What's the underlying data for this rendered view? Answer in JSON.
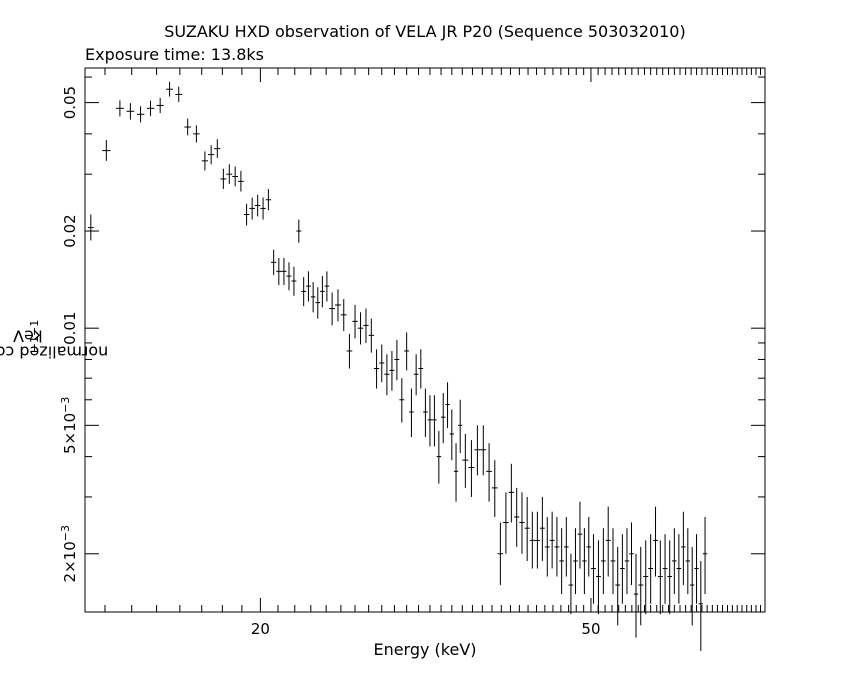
{
  "chart_data": {
    "type": "scatter",
    "title": "SUZAKU HXD observation of VELA JR P20 (Sequence 503032010)",
    "subtitle": "Exposure time: 13.8ks",
    "xlabel": "Energy (keV)",
    "ylabel_text": "normalized counts s",
    "ylabel_sup1": "−1",
    "ylabel_mid": " keV",
    "ylabel_sup2": "−1",
    "xscale": "log",
    "yscale": "log",
    "xlim": [
      12.3,
      81.0
    ],
    "ylim": [
      0.00132,
      0.064
    ],
    "xticks": [
      {
        "value": 20,
        "label": "20"
      },
      {
        "value": 50,
        "label": "50"
      }
    ],
    "yticks": [
      {
        "value": 0.05,
        "label": "0.05"
      },
      {
        "value": 0.02,
        "label": "0.02"
      },
      {
        "value": 0.01,
        "label": "0.01"
      },
      {
        "value": 0.005,
        "label": "5×10",
        "exp": "−3"
      },
      {
        "value": 0.002,
        "label": "2×10",
        "exp": "−3"
      }
    ],
    "points": [
      [
        12.4,
        12.6,
        0.0205,
        0.0187,
        0.0225
      ],
      [
        12.9,
        13.2,
        0.0355,
        0.033,
        0.0383
      ],
      [
        13.4,
        13.7,
        0.048,
        0.0453,
        0.0508
      ],
      [
        13.8,
        14.1,
        0.047,
        0.0443,
        0.0498
      ],
      [
        14.2,
        14.5,
        0.046,
        0.0434,
        0.0487
      ],
      [
        14.6,
        14.9,
        0.048,
        0.0454,
        0.0507
      ],
      [
        15.0,
        15.3,
        0.049,
        0.0464,
        0.0517
      ],
      [
        15.4,
        15.7,
        0.055,
        0.0522,
        0.058
      ],
      [
        15.8,
        16.1,
        0.053,
        0.0502,
        0.056
      ],
      [
        16.2,
        16.5,
        0.042,
        0.0396,
        0.0446
      ],
      [
        16.6,
        16.9,
        0.04,
        0.0376,
        0.0425
      ],
      [
        17.0,
        17.3,
        0.033,
        0.0308,
        0.0353
      ],
      [
        17.3,
        17.6,
        0.0345,
        0.0322,
        0.0369
      ],
      [
        17.6,
        17.9,
        0.036,
        0.0337,
        0.0385
      ],
      [
        17.9,
        18.2,
        0.029,
        0.027,
        0.0312
      ],
      [
        18.2,
        18.5,
        0.03,
        0.028,
        0.0322
      ],
      [
        18.5,
        18.8,
        0.0295,
        0.0275,
        0.0317
      ],
      [
        18.8,
        19.1,
        0.0285,
        0.0265,
        0.0307
      ],
      [
        19.1,
        19.4,
        0.0225,
        0.0208,
        0.0243
      ],
      [
        19.4,
        19.7,
        0.0235,
        0.0217,
        0.0254
      ],
      [
        19.7,
        20.0,
        0.024,
        0.0222,
        0.0259
      ],
      [
        20.0,
        20.3,
        0.0235,
        0.0217,
        0.0254
      ],
      [
        20.3,
        20.6,
        0.025,
        0.0232,
        0.027
      ],
      [
        20.6,
        20.9,
        0.016,
        0.0146,
        0.0175
      ],
      [
        20.9,
        21.2,
        0.015,
        0.0136,
        0.0165
      ],
      [
        21.2,
        21.5,
        0.015,
        0.0136,
        0.0165
      ],
      [
        21.5,
        21.8,
        0.0145,
        0.0131,
        0.016
      ],
      [
        21.8,
        22.1,
        0.014,
        0.0126,
        0.0155
      ],
      [
        22.1,
        22.4,
        0.02,
        0.0184,
        0.0217
      ],
      [
        22.4,
        22.7,
        0.013,
        0.0117,
        0.0144
      ],
      [
        22.7,
        23.0,
        0.0135,
        0.0121,
        0.015
      ],
      [
        23.0,
        23.3,
        0.0125,
        0.0112,
        0.0139
      ],
      [
        23.3,
        23.6,
        0.012,
        0.0107,
        0.0134
      ],
      [
        23.6,
        23.9,
        0.013,
        0.0116,
        0.0145
      ],
      [
        23.9,
        24.2,
        0.0135,
        0.0121,
        0.015
      ],
      [
        24.2,
        24.6,
        0.0115,
        0.0102,
        0.0129
      ],
      [
        24.6,
        25.0,
        0.0118,
        0.0105,
        0.0132
      ],
      [
        25.0,
        25.4,
        0.011,
        0.0098,
        0.0123
      ],
      [
        25.4,
        25.8,
        0.0085,
        0.0075,
        0.0096
      ],
      [
        25.8,
        26.2,
        0.0105,
        0.0093,
        0.0118
      ],
      [
        26.2,
        26.6,
        0.01,
        0.0089,
        0.0112
      ],
      [
        26.6,
        27.0,
        0.0102,
        0.009,
        0.0115
      ],
      [
        27.0,
        27.4,
        0.0095,
        0.0084,
        0.0107
      ],
      [
        27.4,
        27.8,
        0.0075,
        0.0065,
        0.0086
      ],
      [
        27.8,
        28.2,
        0.0078,
        0.0068,
        0.0089
      ],
      [
        28.2,
        28.6,
        0.0072,
        0.0062,
        0.0083
      ],
      [
        28.6,
        29.0,
        0.0074,
        0.0064,
        0.0085
      ],
      [
        29.0,
        29.4,
        0.008,
        0.0069,
        0.0092
      ],
      [
        29.4,
        29.8,
        0.006,
        0.0051,
        0.007
      ],
      [
        29.8,
        30.2,
        0.0085,
        0.0074,
        0.0097
      ],
      [
        30.2,
        30.6,
        0.0055,
        0.0046,
        0.0065
      ],
      [
        30.6,
        31.0,
        0.0072,
        0.0062,
        0.0083
      ],
      [
        31.0,
        31.4,
        0.0075,
        0.0065,
        0.0086
      ],
      [
        31.4,
        31.8,
        0.0055,
        0.0046,
        0.0065
      ],
      [
        31.8,
        32.2,
        0.0052,
        0.0043,
        0.0062
      ],
      [
        32.2,
        32.6,
        0.0052,
        0.0043,
        0.0062
      ],
      [
        32.6,
        33.0,
        0.004,
        0.0033,
        0.0048
      ],
      [
        33.0,
        33.4,
        0.0053,
        0.0044,
        0.0063
      ],
      [
        33.4,
        33.8,
        0.0058,
        0.0049,
        0.0068
      ],
      [
        33.8,
        34.2,
        0.0047,
        0.0039,
        0.0056
      ],
      [
        34.2,
        34.6,
        0.0036,
        0.0029,
        0.0044
      ],
      [
        34.6,
        35.0,
        0.005,
        0.0041,
        0.006
      ],
      [
        35.0,
        35.6,
        0.0039,
        0.0032,
        0.0047
      ],
      [
        35.6,
        36.2,
        0.0037,
        0.003,
        0.0045
      ],
      [
        36.2,
        36.8,
        0.0042,
        0.0035,
        0.005
      ],
      [
        36.8,
        37.4,
        0.0042,
        0.0035,
        0.005
      ],
      [
        37.4,
        38.0,
        0.0036,
        0.0029,
        0.0044
      ],
      [
        38.0,
        38.6,
        0.0032,
        0.0026,
        0.0039
      ],
      [
        38.6,
        39.2,
        0.002,
        0.0016,
        0.0025
      ],
      [
        39.2,
        39.8,
        0.0025,
        0.002,
        0.0031
      ],
      [
        39.8,
        40.4,
        0.0031,
        0.0025,
        0.0038
      ],
      [
        40.4,
        41.0,
        0.0026,
        0.0021,
        0.0032
      ],
      [
        41.0,
        41.6,
        0.0025,
        0.002,
        0.0031
      ],
      [
        41.6,
        42.2,
        0.0024,
        0.0019,
        0.003
      ],
      [
        42.2,
        42.8,
        0.0022,
        0.0018,
        0.0027
      ],
      [
        42.8,
        43.4,
        0.0022,
        0.0018,
        0.0027
      ],
      [
        43.4,
        44.0,
        0.0024,
        0.0019,
        0.003
      ],
      [
        44.0,
        44.6,
        0.0021,
        0.0017,
        0.0026
      ],
      [
        44.6,
        45.2,
        0.0022,
        0.0018,
        0.0027
      ],
      [
        45.2,
        45.8,
        0.0021,
        0.0017,
        0.0026
      ],
      [
        45.8,
        46.4,
        0.0019,
        0.0015,
        0.0024
      ],
      [
        46.4,
        47.0,
        0.0021,
        0.0017,
        0.0026
      ],
      [
        47.0,
        47.6,
        0.0016,
        0.0013,
        0.002
      ],
      [
        47.6,
        48.2,
        0.0019,
        0.0015,
        0.0024
      ],
      [
        48.2,
        48.8,
        0.0023,
        0.0018,
        0.0029
      ],
      [
        48.8,
        49.4,
        0.0019,
        0.0015,
        0.0024
      ],
      [
        49.4,
        50.0,
        0.0021,
        0.0017,
        0.0026
      ],
      [
        50.0,
        50.7,
        0.0018,
        0.0014,
        0.0023
      ],
      [
        50.7,
        51.4,
        0.0017,
        0.0013,
        0.0022
      ],
      [
        51.4,
        52.1,
        0.0019,
        0.0015,
        0.0024
      ],
      [
        52.1,
        52.8,
        0.0022,
        0.0017,
        0.0028
      ],
      [
        52.8,
        53.5,
        0.0019,
        0.0015,
        0.0024
      ],
      [
        53.5,
        54.2,
        0.0016,
        0.0012,
        0.0021
      ],
      [
        54.2,
        54.9,
        0.0018,
        0.0014,
        0.0023
      ],
      [
        54.9,
        55.6,
        0.0019,
        0.0015,
        0.0024
      ],
      [
        55.6,
        56.3,
        0.002,
        0.0016,
        0.0025
      ],
      [
        56.3,
        57.0,
        0.0015,
        0.0011,
        0.002
      ],
      [
        57.0,
        57.8,
        0.0016,
        0.0012,
        0.0021
      ],
      [
        57.8,
        58.6,
        0.0017,
        0.0013,
        0.0022
      ],
      [
        58.6,
        59.4,
        0.0018,
        0.0014,
        0.0023
      ],
      [
        59.4,
        60.2,
        0.0022,
        0.0017,
        0.0028
      ],
      [
        60.2,
        61.0,
        0.0017,
        0.0013,
        0.0022
      ],
      [
        61.0,
        61.8,
        0.0018,
        0.0014,
        0.0023
      ],
      [
        61.8,
        62.6,
        0.0017,
        0.0013,
        0.0022
      ],
      [
        62.6,
        63.4,
        0.0019,
        0.0015,
        0.0024
      ],
      [
        63.4,
        64.2,
        0.0018,
        0.0014,
        0.0023
      ],
      [
        64.2,
        65.0,
        0.0021,
        0.0016,
        0.0027
      ],
      [
        65.0,
        65.8,
        0.0019,
        0.0015,
        0.0024
      ],
      [
        65.8,
        66.6,
        0.0016,
        0.0012,
        0.0021
      ],
      [
        66.6,
        67.4,
        0.0018,
        0.0014,
        0.0023
      ],
      [
        67.4,
        68.2,
        0.0014,
        0.001,
        0.0019
      ],
      [
        68.2,
        69.0,
        0.002,
        0.0015,
        0.0026
      ]
    ]
  }
}
